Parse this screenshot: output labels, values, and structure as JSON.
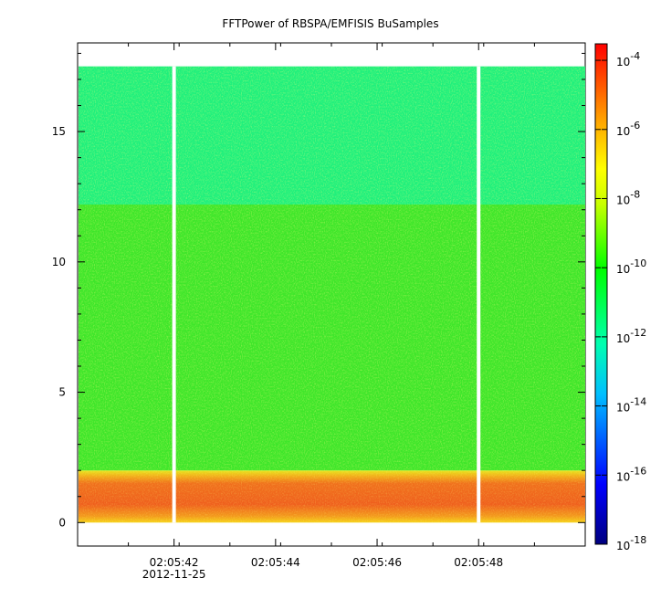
{
  "chart_data": {
    "type": "heatmap",
    "title": "FFTPower of RBSPA/EMFISIS  BuSamples",
    "xlabel": "",
    "ylabel": "",
    "x_axis": {
      "kind": "time",
      "range": [
        "02:05:40.1",
        "02:05:50.1"
      ],
      "ticks": [
        "02:05:42",
        "02:05:44",
        "02:05:46",
        "02:05:48"
      ],
      "date_label": "2012-11-25"
    },
    "y_axis": {
      "range": [
        -0.9,
        18.4
      ],
      "ticks": [
        0,
        5,
        10,
        15
      ],
      "grid": false
    },
    "colorbar": {
      "scale": "log",
      "range": [
        1e-18,
        0.0003
      ],
      "tick_exponents": [
        -18,
        -16,
        -14,
        -12,
        -10,
        -8,
        -6,
        -4
      ],
      "tick_base": "10"
    },
    "bands": [
      {
        "y_from": 0,
        "y_to": 2,
        "log10_power": -7.2,
        "description_color": "#f05a1e"
      },
      {
        "y_from": 2,
        "y_to": 12.2,
        "log10_power": -10.3,
        "description_color": "#2ee02a"
      },
      {
        "y_from": 12.2,
        "y_to": 17.5,
        "log10_power": -11.2,
        "description_color": "#22f07a"
      }
    ],
    "data_gaps_at": [
      "02:05:42",
      "02:05:48"
    ]
  },
  "colors": {
    "band_low": "#f2661c",
    "band_low_edge": "#f4c81a",
    "band_mid": "#3ee62a",
    "band_high": "#1ff07c",
    "gap": "#ffffff"
  }
}
